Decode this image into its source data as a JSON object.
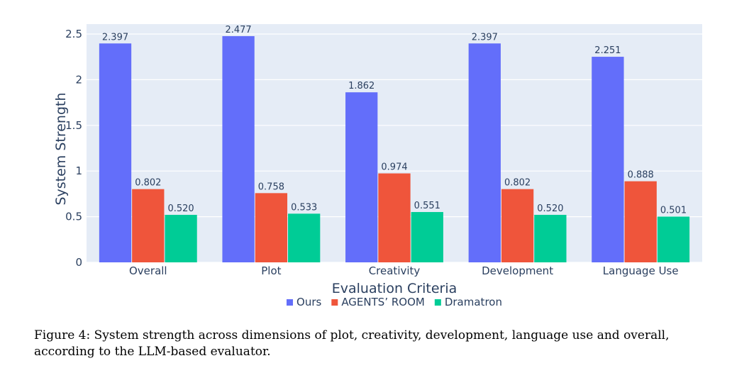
{
  "chart_data": {
    "type": "bar",
    "categories": [
      "Overall",
      "Plot",
      "Creativity",
      "Development",
      "Language Use"
    ],
    "series": [
      {
        "name": "Ours",
        "values": [
          2.397,
          2.477,
          1.862,
          2.397,
          2.251
        ],
        "labels": [
          "2.397",
          "2.477",
          "1.862",
          "2.397",
          "2.251"
        ],
        "color": "#636efa"
      },
      {
        "name": "AGENTS’ ROOM",
        "values": [
          0.802,
          0.758,
          0.974,
          0.802,
          0.888
        ],
        "labels": [
          "0.802",
          "0.758",
          "0.974",
          "0.802",
          "0.888"
        ],
        "color": "#ef553b"
      },
      {
        "name": "Dramatron",
        "values": [
          0.52,
          0.533,
          0.551,
          0.52,
          0.501
        ],
        "labels": [
          "0.520",
          "0.533",
          "0.551",
          "0.520",
          "0.501"
        ],
        "color": "#00cc96"
      }
    ],
    "xlabel": "Evaluation Criteria",
    "ylabel": "System Strength",
    "ylim": [
      0,
      2.5
    ],
    "yticks": [
      0,
      0.5,
      1,
      1.5,
      2,
      2.5
    ],
    "ytick_labels": [
      "0",
      "0.5",
      "1",
      "1.5",
      "2",
      "2.5"
    ],
    "grid": true,
    "plot_bgcolor": "#e5ecf6",
    "legend_position": "bottom-center"
  },
  "caption": "Figure 4: System strength across dimensions of plot, creativity, development, language use and overall, according to the LLM-based evaluator."
}
